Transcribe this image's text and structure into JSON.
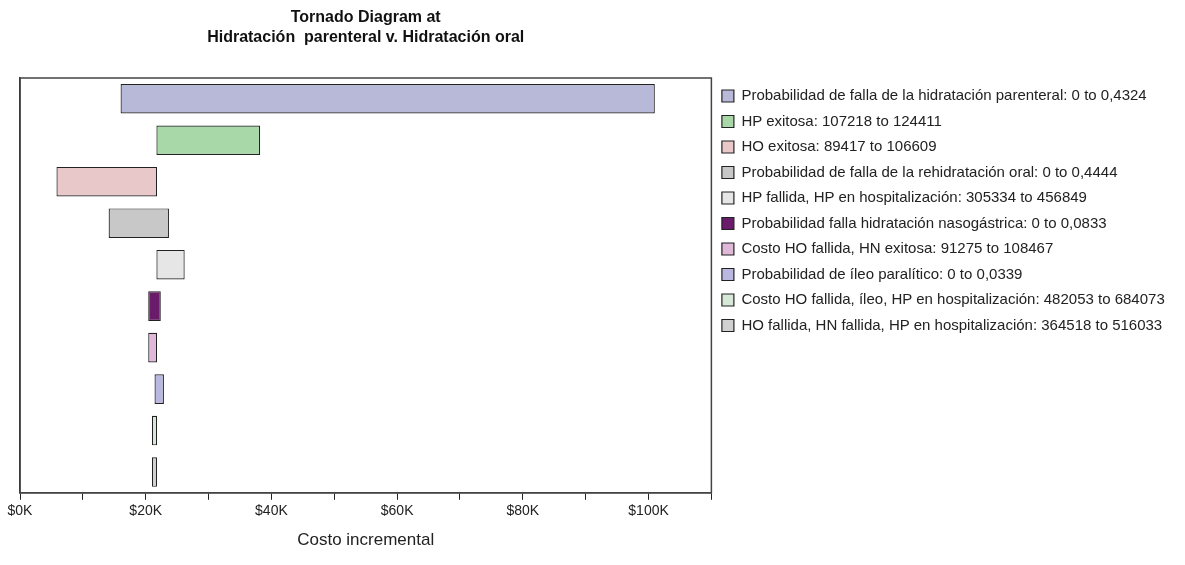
{
  "chart_data": {
    "type": "bar",
    "orientation": "horizontal",
    "title": "Tornado Diagram at\nHidratación  parenteral v. Hidratación oral",
    "xlabel": "Costo incremental",
    "categories": [
      null,
      null,
      null,
      null,
      null,
      null,
      null,
      null,
      null,
      null
    ],
    "series": [
      {
        "name": "Probabilidad de falla de la hidratación parenteral: 0 to 0,4324",
        "color": "#b8b8d8",
        "base": [
          16.0,
          null,
          null,
          null,
          null,
          null,
          null,
          null,
          null,
          null
        ],
        "values": [
          85.0,
          null,
          null,
          null,
          null,
          null,
          null,
          null,
          null,
          null
        ]
      },
      {
        "name": "HP exitosa: 107218 to 124411",
        "color": "#a8d8a8",
        "base": [
          null,
          21.7,
          null,
          null,
          null,
          null,
          null,
          null,
          null,
          null
        ],
        "values": [
          null,
          16.5,
          null,
          null,
          null,
          null,
          null,
          null,
          null,
          null
        ]
      },
      {
        "name": "HO exitosa: 89417 to 106609",
        "color": "#e8c8c8",
        "base": [
          null,
          null,
          5.8,
          null,
          null,
          null,
          null,
          null,
          null,
          null
        ],
        "values": [
          null,
          null,
          16.0,
          null,
          null,
          null,
          null,
          null,
          null,
          null
        ]
      },
      {
        "name": "Probabilidad de falla de la rehidratación oral: 0 to 0,4444",
        "color": "#c8c8c8",
        "base": [
          null,
          null,
          null,
          14.1,
          null,
          null,
          null,
          null,
          null,
          null
        ],
        "values": [
          null,
          null,
          null,
          9.6,
          null,
          null,
          null,
          null,
          null,
          null
        ]
      },
      {
        "name": "HP fallida, HP en hospitalización: 305334 to 456849",
        "color": "#e6e6e6",
        "base": [
          null,
          null,
          null,
          null,
          21.7,
          null,
          null,
          null,
          null,
          null
        ],
        "values": [
          null,
          null,
          null,
          null,
          4.5,
          null,
          null,
          null,
          null,
          null
        ]
      },
      {
        "name": "Probabilidad falla hidratación nasogástrica: 0 to 0,0833",
        "color": "#6a1b6a",
        "base": [
          null,
          null,
          null,
          null,
          null,
          20.4,
          null,
          null,
          null,
          null
        ],
        "values": [
          null,
          null,
          null,
          null,
          null,
          2.0,
          null,
          null,
          null,
          null
        ]
      },
      {
        "name": "Costo HO fallida, HN exitosa: 91275 to 108467",
        "color": "#e0b8d8",
        "base": [
          null,
          null,
          null,
          null,
          null,
          null,
          20.4,
          null,
          null,
          null
        ],
        "values": [
          null,
          null,
          null,
          null,
          null,
          null,
          1.4,
          null,
          null,
          null
        ]
      },
      {
        "name": "Probabilidad de íleo paralítico: 0 to 0,0339",
        "color": "#b8b8e0",
        "base": [
          null,
          null,
          null,
          null,
          null,
          null,
          null,
          21.4,
          null,
          null
        ],
        "values": [
          null,
          null,
          null,
          null,
          null,
          null,
          null,
          1.5,
          null,
          null
        ]
      },
      {
        "name": "Costo HO fallida, íleo, HP en hospitalización: 482053 to 684073",
        "color": "#d8e8d8",
        "base": [
          null,
          null,
          null,
          null,
          null,
          null,
          null,
          null,
          21.0,
          null
        ],
        "values": [
          null,
          null,
          null,
          null,
          null,
          null,
          null,
          null,
          0.8,
          null
        ]
      },
      {
        "name": "HO fallida, HN fallida, HP en hospitalización: 364518 to 516033",
        "color": "#d0d0d0",
        "base": [
          null,
          null,
          null,
          null,
          null,
          null,
          null,
          null,
          null,
          21.0
        ],
        "values": [
          null,
          null,
          null,
          null,
          null,
          null,
          null,
          null,
          null,
          0.8
        ]
      }
    ],
    "xlim": [
      0,
      110
    ],
    "xticks": [
      {
        "value": 0,
        "label": "$0K"
      },
      {
        "value": 10,
        "label": null
      },
      {
        "value": 20,
        "label": "$20K"
      },
      {
        "value": 30,
        "label": null
      },
      {
        "value": 40,
        "label": "$40K"
      },
      {
        "value": 50,
        "label": null
      },
      {
        "value": 60,
        "label": "$60K"
      },
      {
        "value": 70,
        "label": null
      },
      {
        "value": 80,
        "label": "$80K"
      },
      {
        "value": 90,
        "label": null
      },
      {
        "value": 100,
        "label": "$100K"
      },
      {
        "value": 110,
        "label": null
      }
    ],
    "tick_labels": "x",
    "grid": false,
    "legend": "right"
  }
}
